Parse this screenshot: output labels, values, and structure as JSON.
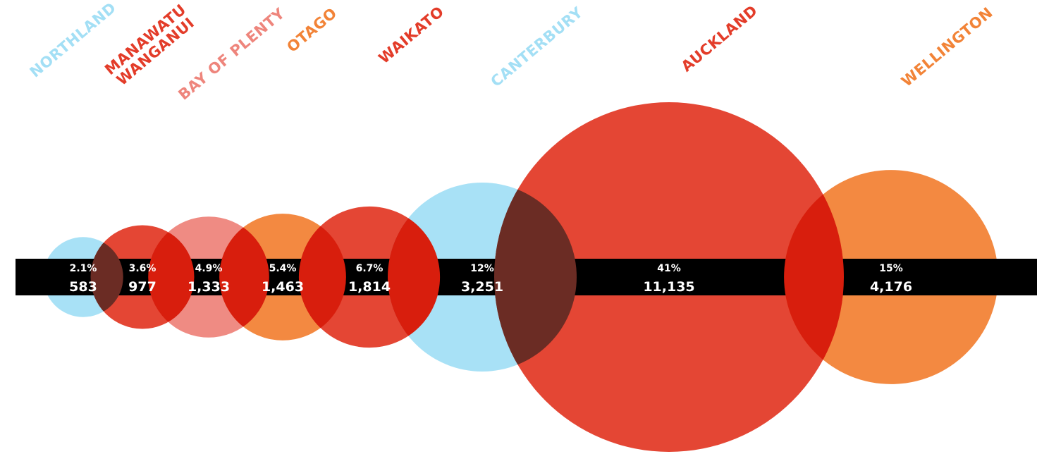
{
  "chart_data": {
    "type": "bubble",
    "title": "",
    "colors": {
      "light_blue": "#a3dff5",
      "red": "#e33c29",
      "salmon": "#ee857c",
      "orange": "#f28337",
      "band": "#000000"
    },
    "points": [
      {
        "region": "NORTHLAND",
        "region_lines": [
          "NORTHLAND"
        ],
        "percent": "2.1%",
        "count_label": "583",
        "value": 583,
        "color": "#a3dff5"
      },
      {
        "region": "MANAWATU WANGANUI",
        "region_lines": [
          "MANAWATU",
          "WANGANUI"
        ],
        "percent": "3.6%",
        "count_label": "977",
        "value": 977,
        "color": "#e33c29"
      },
      {
        "region": "BAY OF PLENTY",
        "region_lines": [
          "BAY OF PLENTY"
        ],
        "percent": "4.9%",
        "count_label": "1,333",
        "value": 1333,
        "color": "#ee857c"
      },
      {
        "region": "OTAGO",
        "region_lines": [
          "OTAGO"
        ],
        "percent": "5.4%",
        "count_label": "1,463",
        "value": 1463,
        "color": "#f28337"
      },
      {
        "region": "WAIKATO",
        "region_lines": [
          "WAIKATO"
        ],
        "percent": "6.7%",
        "count_label": "1,814",
        "value": 1814,
        "color": "#e33c29"
      },
      {
        "region": "CANTERBURY",
        "region_lines": [
          "CANTERBURY"
        ],
        "percent": "12%",
        "count_label": "3,251",
        "value": 3251,
        "color": "#a3dff5"
      },
      {
        "region": "AUCKLAND",
        "region_lines": [
          "AUCKLAND"
        ],
        "percent": "41%",
        "count_label": "11,135",
        "value": 11135,
        "color": "#e33c29"
      },
      {
        "region": "WELLINGTON",
        "region_lines": [
          "WELLINGTON"
        ],
        "percent": "15%",
        "count_label": "4,176",
        "value": 4176,
        "color": "#f28337"
      }
    ]
  }
}
